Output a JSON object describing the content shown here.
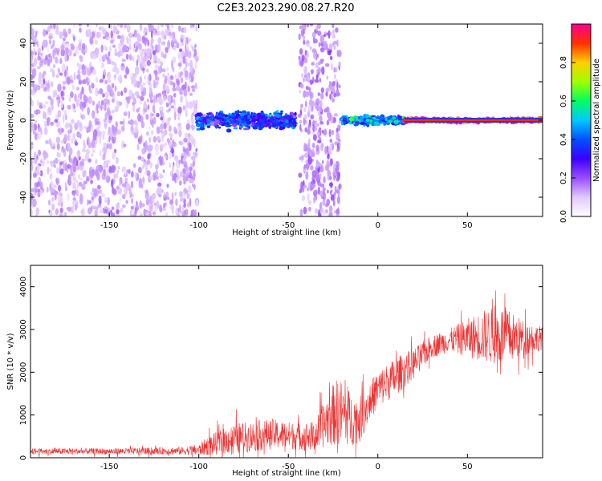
{
  "figure": {
    "title": "C2E3.2023.290.08.27.R20"
  },
  "chart_data": [
    {
      "type": "heatmap",
      "xlabel": "Height of straight line (km)",
      "ylabel": "Frequency (Hz)",
      "xlim": [
        -194,
        92
      ],
      "ylim": [
        -50,
        50
      ],
      "xticks": [
        -150,
        -100,
        -50,
        0,
        50
      ],
      "yticks": [
        -40,
        -20,
        0,
        20,
        40
      ],
      "colorbar": {
        "label": "Normalized spectral amplitude",
        "range": [
          0,
          1
        ],
        "ticks": [
          0.0,
          0.2,
          0.4,
          0.6,
          0.8
        ],
        "colors": [
          "#ffffff",
          "#e2c8ff",
          "#9a4cff",
          "#3a00ff",
          "#0050ff",
          "#00c8ff",
          "#00ff60",
          "#a0ff00",
          "#ffd000",
          "#ff3000",
          "#ff0090"
        ]
      },
      "regions": [
        {
          "x": [
            -194,
            -101
          ],
          "description_level": "broadband noise",
          "amplitude": 0.12
        },
        {
          "x": [
            -101,
            -46
          ],
          "freq_center": 0,
          "bandwidth": 8,
          "amplitude": 0.35
        },
        {
          "x": [
            -44,
            -21
          ],
          "description_level": "broadband noise",
          "amplitude": 0.15
        },
        {
          "x": [
            -20,
            15
          ],
          "freq_center": 0,
          "bandwidth": 4,
          "amplitude": 0.45
        },
        {
          "x": [
            15,
            92
          ],
          "freq_center": 0,
          "bandwidth": 2,
          "amplitude": 0.9
        }
      ]
    },
    {
      "type": "line",
      "xlabel": "Height of straight line (km)",
      "ylabel": "SNR (10 * v/v)",
      "xlim": [
        -194,
        92
      ],
      "ylim": [
        0,
        4500
      ],
      "xticks": [
        -150,
        -100,
        -50,
        0,
        50
      ],
      "yticks": [
        0,
        1000,
        2000,
        3000,
        4000
      ],
      "color": "#ee3333",
      "envelope": {
        "x": [
          -194,
          -150,
          -110,
          -100,
          -95,
          -80,
          -60,
          -45,
          -35,
          -28,
          -22,
          -15,
          -10,
          -5,
          0,
          10,
          20,
          30,
          40,
          50,
          60,
          70,
          80,
          92
        ],
        "y_mean": [
          150,
          150,
          160,
          180,
          280,
          450,
          550,
          500,
          500,
          900,
          1100,
          900,
          900,
          1300,
          1600,
          1900,
          2200,
          2600,
          2750,
          2800,
          2850,
          2850,
          2800,
          2800
        ],
        "y_spread": [
          80,
          80,
          100,
          150,
          250,
          400,
          400,
          350,
          400,
          700,
          900,
          700,
          600,
          500,
          500,
          500,
          400,
          300,
          300,
          500,
          700,
          800,
          500,
          300
        ]
      }
    }
  ]
}
